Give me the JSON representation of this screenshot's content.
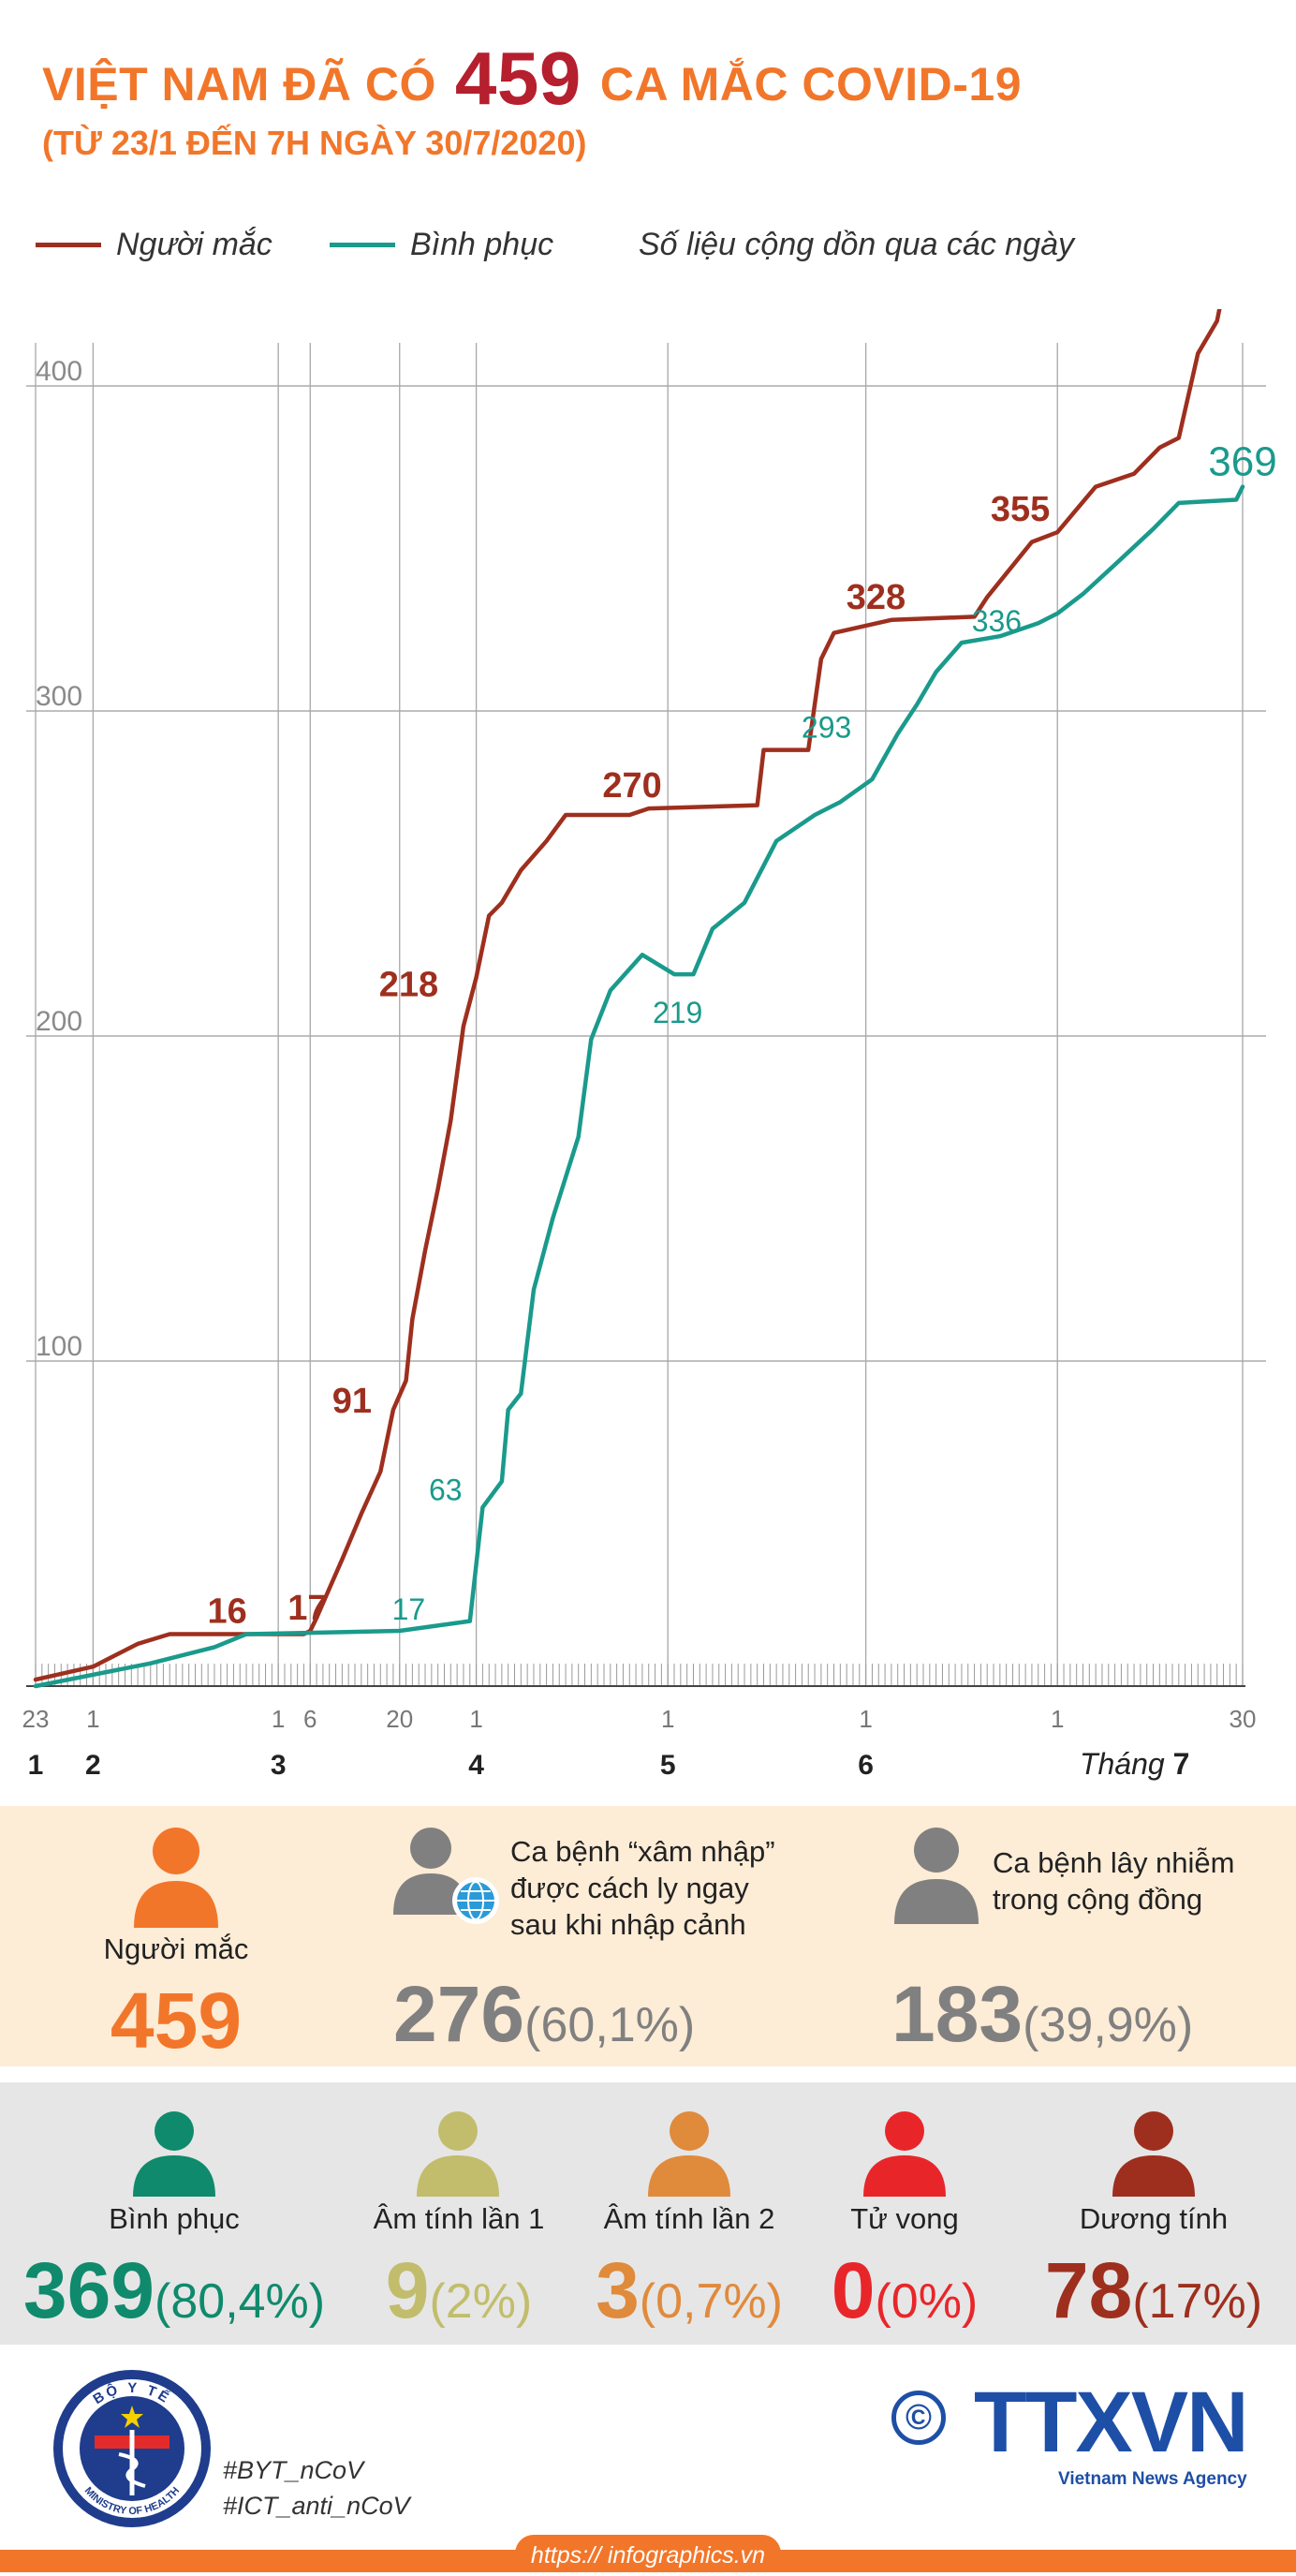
{
  "header": {
    "title_prefix": "VIỆT NAM ĐÃ CÓ",
    "title_number": "459",
    "title_suffix": "CA MẮC COVID-19",
    "subtitle": "(TỪ 23/1 ĐẾN 7H NGÀY 30/7/2020)"
  },
  "legend": {
    "cases_label": "Người mắc",
    "recovered_label": "Bình phục",
    "note": "Số liệu cộng dồn qua các ngày"
  },
  "colors": {
    "cases": "#9e2f1e",
    "recovered": "#1a9a8c",
    "accent": "#f2762a"
  },
  "chart_data": {
    "type": "line",
    "ylim": [
      0,
      410
    ],
    "yticks": [
      100,
      200,
      300,
      400
    ],
    "grid": true,
    "legend_position": "top-left",
    "x_day_ticks": [
      "23",
      "1",
      "1",
      "6",
      "20",
      "1",
      "1",
      "1",
      "1",
      "30"
    ],
    "x_month_ticks": [
      "1",
      "2",
      "3",
      "4",
      "5",
      "6",
      "Tháng 7"
    ],
    "series": [
      {
        "name": "Người mắc",
        "points": [
          [
            "2020-01-23",
            2
          ],
          [
            "2020-02-01",
            6
          ],
          [
            "2020-02-05",
            10
          ],
          [
            "2020-02-08",
            13
          ],
          [
            "2020-02-13",
            16
          ],
          [
            "2020-03-05",
            16
          ],
          [
            "2020-03-06",
            17
          ],
          [
            "2020-03-07",
            21
          ],
          [
            "2020-03-09",
            30
          ],
          [
            "2020-03-11",
            39
          ],
          [
            "2020-03-14",
            53
          ],
          [
            "2020-03-17",
            66
          ],
          [
            "2020-03-19",
            85
          ],
          [
            "2020-03-21",
            94
          ],
          [
            "2020-03-22",
            113
          ],
          [
            "2020-03-24",
            134
          ],
          [
            "2020-03-26",
            153
          ],
          [
            "2020-03-28",
            174
          ],
          [
            "2020-03-30",
            203
          ],
          [
            "2020-04-01",
            218
          ],
          [
            "2020-04-03",
            237
          ],
          [
            "2020-04-05",
            241
          ],
          [
            "2020-04-08",
            251
          ],
          [
            "2020-04-12",
            260
          ],
          [
            "2020-04-15",
            268
          ],
          [
            "2020-04-25",
            268
          ],
          [
            "2020-04-28",
            270
          ],
          [
            "2020-05-15",
            271
          ],
          [
            "2020-05-16",
            288
          ],
          [
            "2020-05-23",
            288
          ],
          [
            "2020-05-25",
            316
          ],
          [
            "2020-05-27",
            324
          ],
          [
            "2020-06-05",
            328
          ],
          [
            "2020-06-18",
            329
          ],
          [
            "2020-06-20",
            335
          ],
          [
            "2020-06-27",
            352
          ],
          [
            "2020-07-01",
            355
          ],
          [
            "2020-07-07",
            369
          ],
          [
            "2020-07-13",
            373
          ],
          [
            "2020-07-17",
            381
          ],
          [
            "2020-07-20",
            384
          ],
          [
            "2020-07-23",
            410
          ],
          [
            "2020-07-26",
            420
          ],
          [
            "2020-07-30",
            459
          ]
        ]
      },
      {
        "name": "Bình phục",
        "points": [
          [
            "2020-01-23",
            0
          ],
          [
            "2020-02-10",
            7
          ],
          [
            "2020-02-20",
            12
          ],
          [
            "2020-02-25",
            16
          ],
          [
            "2020-03-20",
            17
          ],
          [
            "2020-03-31",
            20
          ],
          [
            "2020-04-02",
            55
          ],
          [
            "2020-04-05",
            63
          ],
          [
            "2020-04-06",
            85
          ],
          [
            "2020-04-08",
            90
          ],
          [
            "2020-04-10",
            122
          ],
          [
            "2020-04-13",
            144
          ],
          [
            "2020-04-17",
            169
          ],
          [
            "2020-04-19",
            199
          ],
          [
            "2020-04-22",
            214
          ],
          [
            "2020-04-27",
            225
          ],
          [
            "2020-05-02",
            219
          ],
          [
            "2020-05-05",
            219
          ],
          [
            "2020-05-08",
            233
          ],
          [
            "2020-05-13",
            241
          ],
          [
            "2020-05-18",
            260
          ],
          [
            "2020-05-24",
            268
          ],
          [
            "2020-05-28",
            272
          ],
          [
            "2020-06-02",
            279
          ],
          [
            "2020-06-06",
            293
          ],
          [
            "2020-06-09",
            302
          ],
          [
            "2020-06-12",
            312
          ],
          [
            "2020-06-16",
            321
          ],
          [
            "2020-06-22",
            323
          ],
          [
            "2020-06-28",
            327
          ],
          [
            "2020-07-01",
            330
          ],
          [
            "2020-07-05",
            336
          ],
          [
            "2020-07-10",
            345
          ],
          [
            "2020-07-16",
            356
          ],
          [
            "2020-07-20",
            364
          ],
          [
            "2020-07-29",
            365
          ],
          [
            "2020-07-30",
            369
          ]
        ]
      }
    ],
    "annotations": [
      {
        "series": 0,
        "date": "2020-02-22",
        "value": 16,
        "text": "16"
      },
      {
        "series": 0,
        "date": "2020-03-05",
        "value": 17,
        "text": "17"
      },
      {
        "series": 0,
        "date": "2020-03-19",
        "value": 91,
        "text": "91"
      },
      {
        "series": 0,
        "date": "2020-03-27",
        "value": 218,
        "text": "218"
      },
      {
        "series": 0,
        "date": "2020-04-26",
        "value": 270,
        "text": "270"
      },
      {
        "series": 0,
        "date": "2020-06-02",
        "value": 328,
        "text": "328"
      },
      {
        "series": 0,
        "date": "2020-06-29",
        "value": 355,
        "text": "355"
      },
      {
        "series": 0,
        "date": "2020-07-30",
        "value": 459,
        "text": "459"
      },
      {
        "series": 1,
        "date": "2020-03-22",
        "value": 17,
        "text": "17"
      },
      {
        "series": 1,
        "date": "2020-03-31",
        "value": 63,
        "text": "63"
      },
      {
        "series": 1,
        "date": "2020-05-04",
        "value": 219,
        "text": "219"
      },
      {
        "series": 1,
        "date": "2020-06-01",
        "value": 293,
        "text": "293"
      },
      {
        "series": 1,
        "date": "2020-06-30",
        "value": 336,
        "text": "336"
      },
      {
        "series": 1,
        "date": "2020-07-30",
        "value": 369,
        "text": "369"
      }
    ]
  },
  "stats_top": {
    "cases": {
      "label": "Người mắc",
      "value": "459",
      "color": "#f2762a"
    },
    "imported": {
      "label": "Ca bệnh “xâm nhập” được cách ly ngay sau khi nhập cảnh",
      "value": "276",
      "pct": "(60,1%)",
      "color": "#808080"
    },
    "community": {
      "label": "Ca bệnh lây nhiễm trong cộng đồng",
      "value": "183",
      "pct": "(39,9%)",
      "color": "#808080"
    }
  },
  "stats_bottom": [
    {
      "label": "Bình phục",
      "value": "369",
      "pct": "(80,4%)",
      "color": "#0f8a6c"
    },
    {
      "label": "Âm tính lần 1",
      "value": "9",
      "pct": "(2%)",
      "color": "#c2bd6c"
    },
    {
      "label": "Âm tính lần 2",
      "value": "3",
      "pct": "(0,7%)",
      "color": "#e08a3c"
    },
    {
      "label": "Tử vong",
      "value": "0",
      "pct": "(0%)",
      "color": "#e8262a"
    },
    {
      "label": "Dương tính",
      "value": "78",
      "pct": "(17%)",
      "color": "#9e2f1e"
    }
  ],
  "footer": {
    "hashtag1": "#BYT_nCoV",
    "hashtag2": "#ICT_anti_nCoV",
    "moh_top": "BỘ Y TẾ",
    "moh_bottom": "MINISTRY OF HEALTH",
    "copyright": "©",
    "agency_logo": "TTXVN",
    "agency_name": "Vietnam News Agency",
    "url": "https:// infographics.vn"
  }
}
